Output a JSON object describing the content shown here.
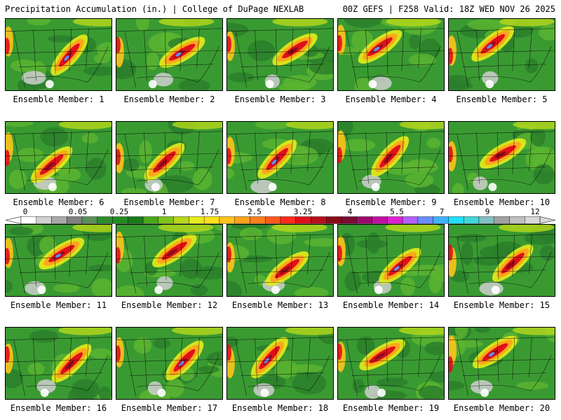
{
  "header": {
    "left": "Precipitation Accumulation (in.) | College of DuPage NEXLAB",
    "right": "00Z GEFS | F258 Valid: 18Z WED NOV 26 2025"
  },
  "members": [
    {
      "caption": "Ensemble Member: 1"
    },
    {
      "caption": "Ensemble Member: 2"
    },
    {
      "caption": "Ensemble Member: 3"
    },
    {
      "caption": "Ensemble Member: 4"
    },
    {
      "caption": "Ensemble Member: 5"
    },
    {
      "caption": "Ensemble Member: 6"
    },
    {
      "caption": "Ensemble Member: 7"
    },
    {
      "caption": "Ensemble Member: 8"
    },
    {
      "caption": "Ensemble Member: 9"
    },
    {
      "caption": "Ensemble Member: 10"
    },
    {
      "caption": "Ensemble Member: 11"
    },
    {
      "caption": "Ensemble Member: 12"
    },
    {
      "caption": "Ensemble Member: 13"
    },
    {
      "caption": "Ensemble Member: 14"
    },
    {
      "caption": "Ensemble Member: 15"
    },
    {
      "caption": "Ensemble Member: 16"
    },
    {
      "caption": "Ensemble Member: 17"
    },
    {
      "caption": "Ensemble Member: 18"
    },
    {
      "caption": "Ensemble Member: 19"
    },
    {
      "caption": "Ensemble Member: 20"
    }
  ],
  "color_scale": {
    "labels": [
      "0",
      "0.05",
      "0.25",
      "1",
      "1.75",
      "2.5",
      "3.25",
      "4",
      "5.5",
      "7",
      "9",
      "12"
    ],
    "colors": [
      "#ffffff",
      "#d0d0d0",
      "#a8a8a8",
      "#808080",
      "#5a8f5a",
      "#2e8b2e",
      "#228b22",
      "#1a7a1a",
      "#4ba61a",
      "#7fc41a",
      "#b8d81a",
      "#e8ec1a",
      "#ffe11a",
      "#ffc31a",
      "#ffa21a",
      "#ff7f1a",
      "#ff5a1a",
      "#ff2a1a",
      "#e0101a",
      "#b80d1a",
      "#8b0a1a",
      "#7a0a30",
      "#9a0a6a",
      "#c010a0",
      "#e020d0",
      "#b060ff",
      "#6a8cff",
      "#40b0ff",
      "#20e0ff",
      "#40d8d8",
      "#80c0c0",
      "#a0a0a0",
      "#c0c0c0",
      "#d8d8d8"
    ]
  }
}
